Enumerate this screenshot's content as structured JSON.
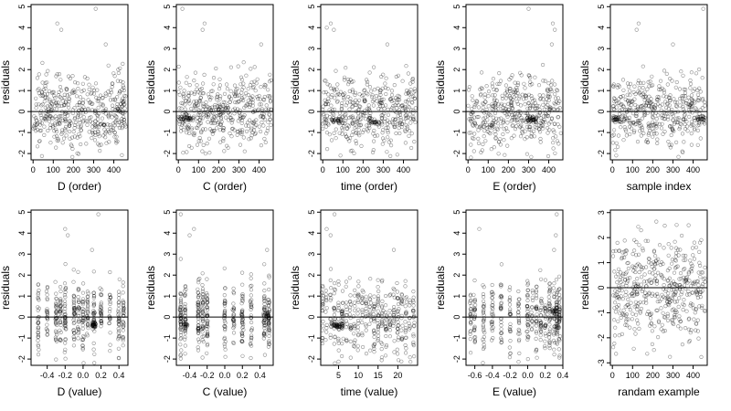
{
  "figure": {
    "title": ""
  },
  "chart_data": [
    {
      "id": "p1",
      "type": "scatter",
      "xlabel": "D (order)",
      "ylabel": "residuals",
      "xlim": [
        -10,
        470
      ],
      "ylim": [
        -2.3,
        5.1
      ],
      "xticks": [
        0,
        100,
        200,
        300,
        400
      ],
      "xtick_labels": [
        "0",
        "100",
        "200",
        "300",
        "400"
      ],
      "yticks": [
        -2,
        -1,
        0,
        1,
        2,
        3,
        4,
        5
      ],
      "ytick_labels": [
        "-2",
        "-1",
        "0",
        "1",
        "2",
        "3",
        "4",
        "5"
      ],
      "hline": 0,
      "n_points": 460,
      "y_mean": 0,
      "y_sd": 0.85,
      "outliers": [
        {
          "x": 120,
          "y": 4.2
        },
        {
          "x": 310,
          "y": 4.9
        },
        {
          "x": 140,
          "y": 3.9
        },
        {
          "x": 360,
          "y": 3.2
        }
      ],
      "dense_clusters": [],
      "x_groups": []
    },
    {
      "id": "p2",
      "type": "scatter",
      "xlabel": "C (order)",
      "ylabel": "residuals",
      "xlim": [
        -10,
        470
      ],
      "ylim": [
        -2.3,
        5.1
      ],
      "xticks": [
        0,
        100,
        200,
        300,
        400
      ],
      "xtick_labels": [
        "0",
        "100",
        "200",
        "300",
        "400"
      ],
      "yticks": [
        -2,
        -1,
        0,
        1,
        2,
        3,
        4,
        5
      ],
      "ytick_labels": [
        "-2",
        "-1",
        "0",
        "1",
        "2",
        "3",
        "4",
        "5"
      ],
      "hline": 0,
      "n_points": 460,
      "y_mean": 0,
      "y_sd": 0.85,
      "outliers": [
        {
          "x": 20,
          "y": 4.9
        },
        {
          "x": 130,
          "y": 4.2
        },
        {
          "x": 120,
          "y": 3.9
        },
        {
          "x": 410,
          "y": 3.2
        }
      ],
      "dense_clusters": [
        {
          "x0": 0,
          "x1": 80,
          "y": -0.35
        }
      ],
      "x_groups": []
    },
    {
      "id": "p3",
      "type": "scatter",
      "xlabel": "time (order)",
      "ylabel": "residuals",
      "xlim": [
        -10,
        470
      ],
      "ylim": [
        -2.3,
        5.1
      ],
      "xticks": [
        0,
        100,
        200,
        300,
        400
      ],
      "xtick_labels": [
        "0",
        "100",
        "200",
        "300",
        "400"
      ],
      "yticks": [
        -2,
        -1,
        0,
        1,
        2,
        3,
        4,
        5
      ],
      "ytick_labels": [
        "-2",
        "-1",
        "0",
        "1",
        "2",
        "3",
        "4",
        "5"
      ],
      "hline": 0,
      "n_points": 460,
      "y_mean": 0,
      "y_sd": 0.85,
      "outliers": [
        {
          "x": 40,
          "y": 4.2
        },
        {
          "x": 55,
          "y": 3.9
        },
        {
          "x": 20,
          "y": 4.0
        },
        {
          "x": 320,
          "y": 3.2
        }
      ],
      "dense_clusters": [
        {
          "x0": 40,
          "x1": 100,
          "y": -0.4
        },
        {
          "x0": 230,
          "x1": 280,
          "y": -0.5
        }
      ],
      "x_groups": []
    },
    {
      "id": "p4",
      "type": "scatter",
      "xlabel": "E (order)",
      "ylabel": "residuals",
      "xlim": [
        -10,
        470
      ],
      "ylim": [
        -2.3,
        5.1
      ],
      "xticks": [
        0,
        100,
        200,
        300,
        400
      ],
      "xtick_labels": [
        "0",
        "100",
        "200",
        "300",
        "400"
      ],
      "yticks": [
        -2,
        -1,
        0,
        1,
        2,
        3,
        4,
        5
      ],
      "ytick_labels": [
        "-2",
        "-1",
        "0",
        "1",
        "2",
        "3",
        "4",
        "5"
      ],
      "hline": 0,
      "n_points": 460,
      "y_mean": 0,
      "y_sd": 0.85,
      "outliers": [
        {
          "x": 300,
          "y": 4.9
        },
        {
          "x": 420,
          "y": 4.2
        },
        {
          "x": 430,
          "y": 3.9
        },
        {
          "x": 415,
          "y": 3.2
        }
      ],
      "dense_clusters": [
        {
          "x0": 290,
          "x1": 340,
          "y": -0.35
        }
      ],
      "x_groups": []
    },
    {
      "id": "p5",
      "type": "scatter",
      "xlabel": "sample index",
      "ylabel": "residuals",
      "xlim": [
        -10,
        470
      ],
      "ylim": [
        -2.3,
        5.1
      ],
      "xticks": [
        0,
        100,
        200,
        300,
        400
      ],
      "xtick_labels": [
        "0",
        "100",
        "200",
        "300",
        "400"
      ],
      "yticks": [
        -2,
        -1,
        0,
        1,
        2,
        3,
        4,
        5
      ],
      "ytick_labels": [
        "-2",
        "-1",
        "0",
        "1",
        "2",
        "3",
        "4",
        "5"
      ],
      "hline": 0,
      "n_points": 460,
      "y_mean": 0,
      "y_sd": 0.85,
      "outliers": [
        {
          "x": 450,
          "y": 4.9
        },
        {
          "x": 130,
          "y": 4.2
        },
        {
          "x": 120,
          "y": 3.9
        },
        {
          "x": 300,
          "y": 3.2
        }
      ],
      "dense_clusters": [
        {
          "x0": 0,
          "x1": 40,
          "y": -0.35
        },
        {
          "x0": 420,
          "x1": 460,
          "y": -0.35
        }
      ],
      "x_groups": []
    },
    {
      "id": "p6",
      "type": "scatter",
      "xlabel": "D (value)",
      "ylabel": "residuals",
      "xlim": [
        -0.58,
        0.5
      ],
      "ylim": [
        -2.3,
        5.1
      ],
      "xticks": [
        -0.4,
        -0.2,
        0,
        0.2,
        0.4
      ],
      "xtick_labels": [
        "-0.4",
        "-0.2",
        "0.0",
        "0.2",
        "0.4"
      ],
      "yticks": [
        -2,
        -1,
        0,
        1,
        2,
        3,
        4,
        5
      ],
      "ytick_labels": [
        "-2",
        "-1",
        "0",
        "1",
        "2",
        "3",
        "4",
        "5"
      ],
      "hline": 0,
      "n_points": 460,
      "y_mean": 0,
      "y_sd": 0.85,
      "outliers": [
        {
          "x": -0.2,
          "y": 4.2
        },
        {
          "x": -0.17,
          "y": 3.9
        },
        {
          "x": 0.17,
          "y": 4.9
        },
        {
          "x": 0.1,
          "y": 3.2
        }
      ],
      "dense_clusters": [
        {
          "x0": 0.1,
          "x1": 0.14,
          "y": -0.35
        }
      ],
      "x_groups": [
        -0.5,
        -0.4,
        -0.3,
        -0.25,
        -0.2,
        -0.1,
        -0.05,
        0,
        0.05,
        0.12,
        0.2,
        0.3,
        0.4,
        0.45
      ]
    },
    {
      "id": "p7",
      "type": "scatter",
      "xlabel": "C (value)",
      "ylabel": "residuals",
      "xlim": [
        -0.55,
        0.55
      ],
      "ylim": [
        -2.3,
        5.1
      ],
      "xticks": [
        -0.4,
        -0.2,
        0,
        0.2,
        0.4
      ],
      "xtick_labels": [
        "-0.4",
        "-0.2",
        "0.0",
        "0.2",
        "0.4"
      ],
      "yticks": [
        -2,
        -1,
        0,
        1,
        2,
        3,
        4,
        5
      ],
      "ytick_labels": [
        "-2",
        "-1",
        "0",
        "1",
        "2",
        "3",
        "4",
        "5"
      ],
      "hline": 0,
      "n_points": 460,
      "y_mean": 0,
      "y_sd": 0.85,
      "outliers": [
        {
          "x": -0.5,
          "y": 4.9
        },
        {
          "x": -0.35,
          "y": 4.2
        },
        {
          "x": -0.4,
          "y": 3.9
        },
        {
          "x": 0.48,
          "y": 3.2
        }
      ],
      "dense_clusters": [
        {
          "x0": -0.5,
          "x1": -0.42,
          "y": -0.35
        },
        {
          "x0": 0.45,
          "x1": 0.5,
          "y": 0.1
        }
      ],
      "x_groups": [
        -0.5,
        -0.45,
        -0.3,
        -0.25,
        -0.2,
        0,
        0.1,
        0.2,
        0.3,
        0.45,
        0.5
      ]
    },
    {
      "id": "p8",
      "type": "scatter",
      "xlabel": "time (value)",
      "ylabel": "residuals",
      "xlim": [
        0.5,
        25
      ],
      "ylim": [
        -2.3,
        5.1
      ],
      "xticks": [
        5,
        10,
        15,
        20
      ],
      "xtick_labels": [
        "5",
        "10",
        "15",
        "20"
      ],
      "yticks": [
        -2,
        -1,
        0,
        1,
        2,
        3,
        4,
        5
      ],
      "ytick_labels": [
        "-2",
        "-1",
        "0",
        "1",
        "2",
        "3",
        "4",
        "5"
      ],
      "hline": 0,
      "n_points": 460,
      "y_mean": 0,
      "y_sd": 0.85,
      "outliers": [
        {
          "x": 2,
          "y": 4.2
        },
        {
          "x": 3,
          "y": 3.9
        },
        {
          "x": 4,
          "y": 4.9
        },
        {
          "x": 19,
          "y": 3.2
        }
      ],
      "dense_clusters": [
        {
          "x0": 3,
          "x1": 6,
          "y": -0.4
        }
      ],
      "x_groups": [
        1,
        2,
        3,
        4,
        5,
        6,
        7,
        8,
        9,
        10,
        11,
        12,
        13,
        14,
        15,
        16,
        17,
        18,
        19,
        20,
        21,
        22,
        23,
        24
      ]
    },
    {
      "id": "p9",
      "type": "scatter",
      "xlabel": "E (value)",
      "ylabel": "residuals",
      "xlim": [
        -0.7,
        0.4
      ],
      "ylim": [
        -2.3,
        5.1
      ],
      "xticks": [
        -0.6,
        -0.4,
        -0.2,
        0,
        0.2,
        0.4
      ],
      "xtick_labels": [
        "-0.6",
        "-0.4",
        "-0.2",
        "0.0",
        "0.2",
        "0.4"
      ],
      "yticks": [
        -2,
        -1,
        0,
        1,
        2,
        3,
        4,
        5
      ],
      "ytick_labels": [
        "-2",
        "-1",
        "0",
        "1",
        "2",
        "3",
        "4",
        "5"
      ],
      "hline": 0,
      "n_points": 460,
      "y_mean": 0,
      "y_sd": 0.85,
      "outliers": [
        {
          "x": 0.33,
          "y": 4.9
        },
        {
          "x": -0.55,
          "y": 4.2
        },
        {
          "x": 0.32,
          "y": 3.9
        },
        {
          "x": 0.3,
          "y": 3.2
        }
      ],
      "dense_clusters": [
        {
          "x0": 0.3,
          "x1": 0.36,
          "y": -0.5
        },
        {
          "x0": 0.28,
          "x1": 0.33,
          "y": 0.3
        }
      ],
      "x_groups": [
        -0.65,
        -0.6,
        -0.5,
        -0.4,
        -0.3,
        -0.2,
        -0.1,
        0,
        0.05,
        0.1,
        0.15,
        0.2,
        0.25,
        0.3,
        0.33,
        0.36
      ]
    },
    {
      "id": "p10",
      "type": "scatter",
      "xlabel": "randam example",
      "ylabel": "residuals",
      "xlim": [
        -10,
        470
      ],
      "ylim": [
        -3.1,
        3.1
      ],
      "xticks": [
        0,
        100,
        200,
        300,
        400
      ],
      "xtick_labels": [
        "0",
        "100",
        "200",
        "300",
        "400"
      ],
      "yticks": [
        -3,
        -2,
        -1,
        0,
        1,
        2,
        3
      ],
      "ytick_labels": [
        "-3",
        "-2",
        "-1",
        "0",
        "1",
        "2",
        "3"
      ],
      "hline": 0,
      "n_points": 460,
      "y_mean": 0,
      "y_sd": 1.0,
      "outliers": [],
      "dense_clusters": [],
      "x_groups": []
    }
  ]
}
